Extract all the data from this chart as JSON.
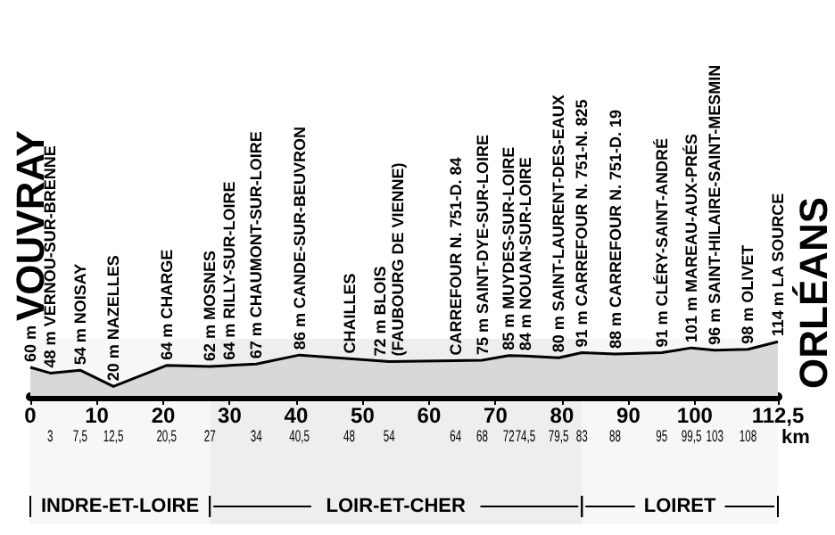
{
  "chart_data": {
    "type": "area",
    "xlabel": "km",
    "x": [
      0,
      3,
      7.5,
      12.5,
      20.5,
      27,
      30,
      34,
      40.5,
      54,
      68,
      72,
      74.5,
      79.5,
      83,
      88,
      95,
      99.5,
      103,
      108,
      112.5
    ],
    "values": [
      60,
      48,
      54,
      20,
      64,
      62,
      64,
      67,
      86,
      72,
      75,
      85,
      84,
      80,
      91,
      88,
      91,
      101,
      96,
      98,
      114
    ],
    "value_labels": [
      "60 m",
      "48 m VERNOU-SUR-BRENNE",
      "54 m NOISAY",
      "20 m NAZELLES",
      "64 m CHARGE",
      "62 m MOSNES",
      "64 m RILLY-SUR-LOIRE",
      "67 m CHAUMONT-SUR-LOIRE",
      "86 m CANDE-SUR-BEUVRON",
      "72 m BLOIS\n(FAUBOURG DE VIENNE)",
      "75 m SAINT-DYE-SUR-LOIRE",
      "85 m MUYDES-SUR-LOIRE",
      "84 m NOUAN-SUR-LOIRE",
      "80 m SAINT-LAURENT-DES-EAUX",
      "91 m CARREFOUR N. 751-N. 825",
      "88 m CARREFOUR N. 751-D. 19",
      "91 m CLÉRY-SAINT-ANDRÉ",
      "101 m MAREAU-AUX-PRÉS",
      "96 m SAINT-HILAIRE-SAINT-MESMIN",
      "98 m OLIVET",
      "114 m LA SOURCE"
    ],
    "color": "#000000",
    "tick_labels": "x",
    "grid": false,
    "xlim": [
      0,
      112.5
    ],
    "xticks": [
      0,
      10,
      20,
      30,
      40,
      50,
      60,
      70,
      80,
      90,
      100,
      {
        "value": 112.5,
        "label": "112,5"
      }
    ],
    "x2lim": [
      0,
      112.5
    ],
    "x2ticks": [
      3,
      {
        "value": 7.5,
        "label": "7,5"
      },
      {
        "value": 12.5,
        "label": "12,5"
      },
      {
        "value": 20.5,
        "label": "20,5"
      },
      27,
      34,
      {
        "value": 40.5,
        "label": "40,5"
      },
      48,
      54,
      64,
      68,
      72,
      {
        "value": 74.5,
        "label": "74,5"
      },
      {
        "value": 79.5,
        "label": "79,5"
      },
      83,
      88,
      95,
      {
        "value": 99.5,
        "label": "99,5"
      },
      103,
      108
    ],
    "annotations": [
      "VOUVRAY",
      {
        "text": "CHAILLES",
        "x": 48,
        "y": 78
      },
      {
        "text": "CARREFOUR N. 751-D. 84",
        "x": 64,
        "y": 74
      },
      "ORLÉANS"
    ],
    "bands": [
      {
        "axis": "x",
        "from": 0,
        "to": 27,
        "label": "INDRE-ET-LOIRE"
      },
      {
        "axis": "x",
        "from": 27,
        "to": 83,
        "label": "LOIR-ET-CHER"
      },
      {
        "axis": "x",
        "from": 83,
        "to": 112.5,
        "label": "LOIRET"
      }
    ]
  }
}
